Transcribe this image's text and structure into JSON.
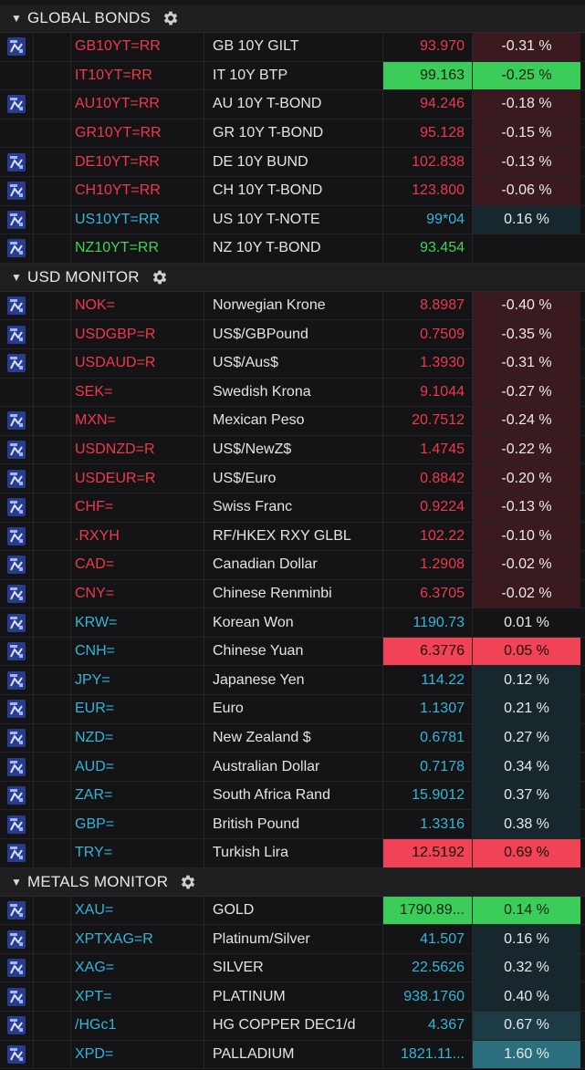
{
  "sections": [
    {
      "title": "GLOBAL BONDS",
      "rows": [
        {
          "icon": true,
          "ric": "GB10YT=RR",
          "name": "GB 10Y GILT",
          "last": "93.970",
          "chg": "-0.31 %",
          "dir": "down",
          "chgStyle": "chg-neg",
          "lastStyle": ""
        },
        {
          "icon": false,
          "ric": "IT10YT=RR",
          "name": "IT 10Y BTP",
          "last": "99.163",
          "chg": "-0.25 %",
          "dir": "down",
          "chgStyle": "hl-green",
          "lastStyle": "hl-green"
        },
        {
          "icon": true,
          "ric": "AU10YT=RR",
          "name": "AU 10Y T-BOND",
          "last": "94.246",
          "chg": "-0.18 %",
          "dir": "down",
          "chgStyle": "chg-neg",
          "lastStyle": ""
        },
        {
          "icon": false,
          "ric": "GR10YT=RR",
          "name": "GR 10Y T-BOND",
          "last": "95.128",
          "chg": "-0.15 %",
          "dir": "down",
          "chgStyle": "chg-neg",
          "lastStyle": ""
        },
        {
          "icon": true,
          "ric": "DE10YT=RR",
          "name": "DE 10Y BUND",
          "last": "102.838",
          "chg": "-0.13 %",
          "dir": "down",
          "chgStyle": "chg-neg",
          "lastStyle": ""
        },
        {
          "icon": true,
          "ric": "CH10YT=RR",
          "name": "CH 10Y T-BOND",
          "last": "123.800",
          "chg": "-0.06 %",
          "dir": "down",
          "chgStyle": "chg-neg",
          "lastStyle": ""
        },
        {
          "icon": true,
          "ric": "US10YT=RR",
          "name": "US 10Y T-NOTE",
          "last": "99*04",
          "chg": "0.16 %",
          "dir": "up",
          "chgStyle": "chg-pos",
          "lastStyle": ""
        },
        {
          "icon": true,
          "ric": "NZ10YT=RR",
          "name": "NZ 10Y T-BOND",
          "last": "93.454",
          "chg": "",
          "dir": "green",
          "chgStyle": "",
          "lastStyle": ""
        }
      ]
    },
    {
      "title": "USD MONITOR",
      "rows": [
        {
          "icon": true,
          "ric": "NOK=",
          "name": "Norwegian Krone",
          "last": "8.8987",
          "chg": "-0.40 %",
          "dir": "down",
          "chgStyle": "chg-neg",
          "lastStyle": ""
        },
        {
          "icon": true,
          "ric": "USDGBP=R",
          "name": "US$/GBPound",
          "last": "0.7509",
          "chg": "-0.35 %",
          "dir": "down",
          "chgStyle": "chg-neg",
          "lastStyle": ""
        },
        {
          "icon": true,
          "ric": "USDAUD=R",
          "name": "US$/Aus$",
          "last": "1.3930",
          "chg": "-0.31 %",
          "dir": "down",
          "chgStyle": "chg-neg",
          "lastStyle": ""
        },
        {
          "icon": false,
          "ric": "SEK=",
          "name": "Swedish Krona",
          "last": "9.1044",
          "chg": "-0.27 %",
          "dir": "down",
          "chgStyle": "chg-neg",
          "lastStyle": ""
        },
        {
          "icon": true,
          "ric": "MXN=",
          "name": "Mexican Peso",
          "last": "20.7512",
          "chg": "-0.24 %",
          "dir": "down",
          "chgStyle": "chg-neg",
          "lastStyle": ""
        },
        {
          "icon": true,
          "ric": "USDNZD=R",
          "name": "US$/NewZ$",
          "last": "1.4745",
          "chg": "-0.22 %",
          "dir": "down",
          "chgStyle": "chg-neg",
          "lastStyle": ""
        },
        {
          "icon": true,
          "ric": "USDEUR=R",
          "name": "US$/Euro",
          "last": "0.8842",
          "chg": "-0.20 %",
          "dir": "down",
          "chgStyle": "chg-neg",
          "lastStyle": ""
        },
        {
          "icon": true,
          "ric": "CHF=",
          "name": "Swiss Franc",
          "last": "0.9224",
          "chg": "-0.13 %",
          "dir": "down",
          "chgStyle": "chg-neg",
          "lastStyle": ""
        },
        {
          "icon": true,
          "ric": ".RXYH",
          "name": "RF/HKEX RXY GLBL",
          "last": "102.22",
          "chg": "-0.10 %",
          "dir": "down",
          "chgStyle": "chg-neg",
          "lastStyle": ""
        },
        {
          "icon": true,
          "ric": "CAD=",
          "name": "Canadian Dollar",
          "last": "1.2908",
          "chg": "-0.02 %",
          "dir": "down",
          "chgStyle": "chg-neg",
          "lastStyle": ""
        },
        {
          "icon": true,
          "ric": "CNY=",
          "name": "Chinese Renminbi",
          "last": "6.3705",
          "chg": "-0.02 %",
          "dir": "down",
          "chgStyle": "chg-neg",
          "lastStyle": ""
        },
        {
          "icon": true,
          "ric": "KRW=",
          "name": "Korean Won",
          "last": "1190.73",
          "chg": "0.01 %",
          "dir": "up",
          "chgStyle": "",
          "lastStyle": ""
        },
        {
          "icon": true,
          "ric": "CNH=",
          "name": "Chinese Yuan",
          "last": "6.3776",
          "chg": "0.05 %",
          "dir": "up",
          "chgStyle": "hl-red",
          "lastStyle": "hl-red"
        },
        {
          "icon": true,
          "ric": "JPY=",
          "name": "Japanese Yen",
          "last": "114.22",
          "chg": "0.12 %",
          "dir": "up",
          "chgStyle": "chg-pos",
          "lastStyle": ""
        },
        {
          "icon": true,
          "ric": "EUR=",
          "name": "Euro",
          "last": "1.1307",
          "chg": "0.21 %",
          "dir": "up",
          "chgStyle": "chg-pos",
          "lastStyle": ""
        },
        {
          "icon": true,
          "ric": "NZD=",
          "name": "New Zealand $",
          "last": "0.6781",
          "chg": "0.27 %",
          "dir": "up",
          "chgStyle": "chg-pos",
          "lastStyle": ""
        },
        {
          "icon": true,
          "ric": "AUD=",
          "name": "Australian Dollar",
          "last": "0.7178",
          "chg": "0.34 %",
          "dir": "up",
          "chgStyle": "chg-pos",
          "lastStyle": ""
        },
        {
          "icon": true,
          "ric": "ZAR=",
          "name": "South Africa Rand",
          "last": "15.9012",
          "chg": "0.37 %",
          "dir": "up",
          "chgStyle": "chg-pos",
          "lastStyle": ""
        },
        {
          "icon": true,
          "ric": "GBP=",
          "name": "British Pound",
          "last": "1.3316",
          "chg": "0.38 %",
          "dir": "up",
          "chgStyle": "chg-pos",
          "lastStyle": ""
        },
        {
          "icon": true,
          "ric": "TRY=",
          "name": "Turkish Lira",
          "last": "12.5192",
          "chg": "0.69 %",
          "dir": "up",
          "chgStyle": "hl-red",
          "lastStyle": "hl-red"
        }
      ]
    },
    {
      "title": "METALS MONITOR",
      "rows": [
        {
          "icon": true,
          "ric": "XAU=",
          "name": "GOLD",
          "last": "1790.89...",
          "chg": "0.14 %",
          "dir": "up",
          "chgStyle": "hl-green",
          "lastStyle": "hl-green"
        },
        {
          "icon": true,
          "ric": "XPTXAG=R",
          "name": "Platinum/Silver",
          "last": "41.507",
          "chg": "0.16 %",
          "dir": "up",
          "chgStyle": "chg-pos",
          "lastStyle": ""
        },
        {
          "icon": true,
          "ric": "XAG=",
          "name": "SILVER",
          "last": "22.5626",
          "chg": "0.32 %",
          "dir": "up",
          "chgStyle": "chg-pos",
          "lastStyle": ""
        },
        {
          "icon": true,
          "ric": "XPT=",
          "name": "PLATINUM",
          "last": "938.1760",
          "chg": "0.40 %",
          "dir": "up",
          "chgStyle": "chg-pos",
          "lastStyle": ""
        },
        {
          "icon": true,
          "ric": "/HGc1",
          "name": "HG COPPER DEC1/d",
          "last": "4.367",
          "chg": "0.67 %",
          "dir": "up",
          "chgStyle": "chg-pos2",
          "lastStyle": ""
        },
        {
          "icon": true,
          "ric": "XPD=",
          "name": "PALLADIUM",
          "last": "1821.11...",
          "chg": "1.60 %",
          "dir": "up",
          "chgStyle": "chg-pos3",
          "lastStyle": ""
        }
      ]
    }
  ],
  "colors": {
    "down": "#ee3a4a",
    "up": "#36b5d6",
    "green": "#41d15a",
    "highlight_green": "#3ccc5a",
    "highlight_red": "#f04456"
  }
}
